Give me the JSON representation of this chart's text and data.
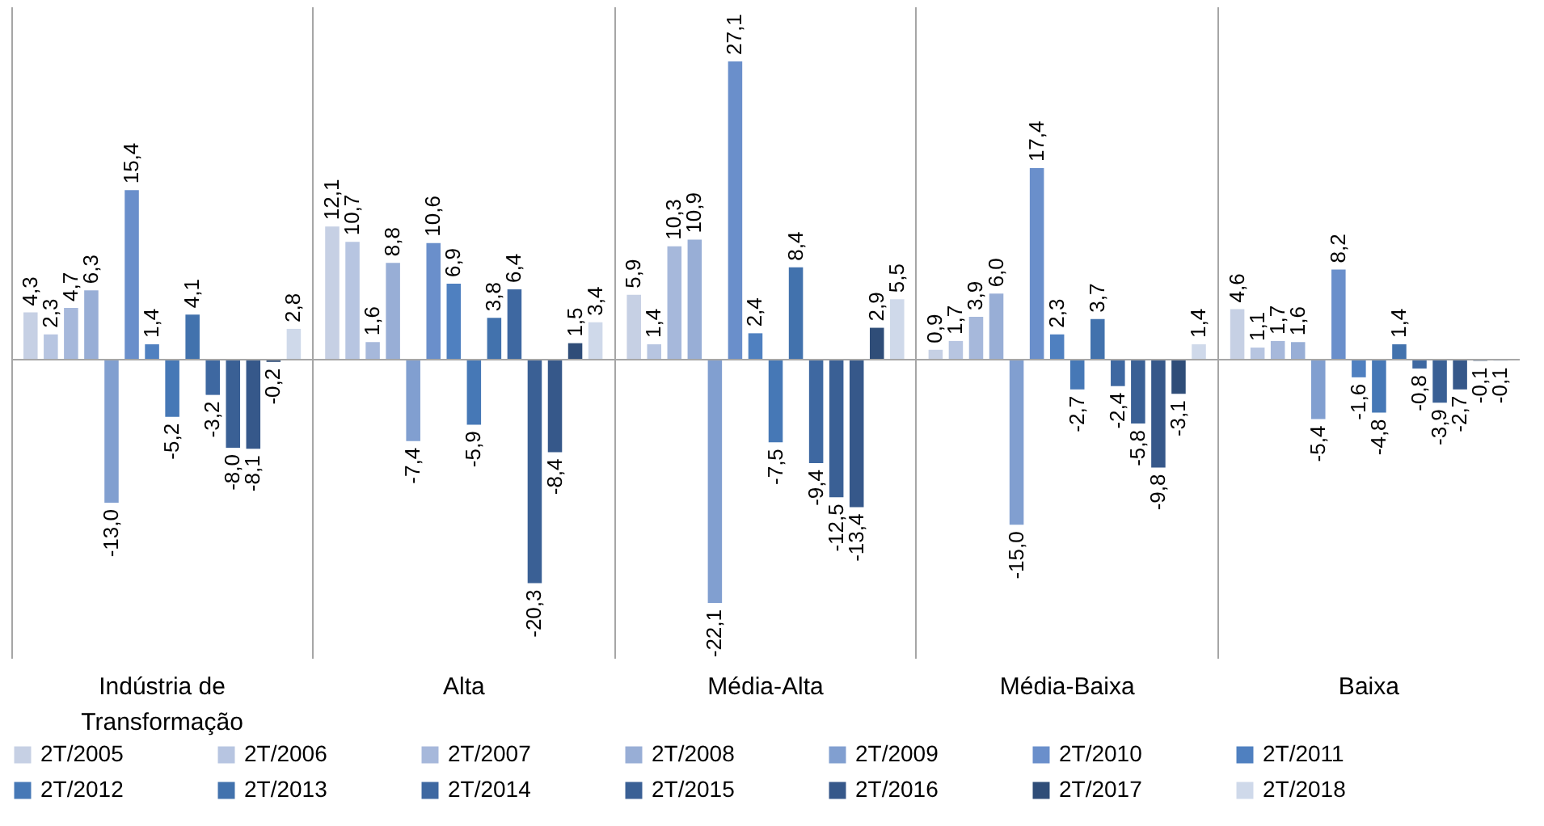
{
  "chart_data": {
    "type": "bar",
    "categories": [
      "Indústria de Transformação",
      "Alta",
      "Média-Alta",
      "Média-Baixa",
      "Baixa"
    ],
    "series": [
      {
        "name": "2T/2005",
        "color": "#c6d0e4",
        "values": [
          4.3,
          12.1,
          5.9,
          0.9,
          4.6
        ],
        "value_labels": [
          "4,3",
          "12,1",
          "5,9",
          "0,9",
          "4,6"
        ]
      },
      {
        "name": "2T/2006",
        "color": "#b7c5e1",
        "values": [
          2.3,
          10.7,
          1.4,
          1.7,
          1.1
        ],
        "value_labels": [
          "2,3",
          "10,7",
          "1,4",
          "1,7",
          "1,1"
        ]
      },
      {
        "name": "2T/2007",
        "color": "#a6b8db",
        "values": [
          4.7,
          1.6,
          10.3,
          3.9,
          1.7
        ],
        "value_labels": [
          "4,7",
          "1,6",
          "10,3",
          "3,9",
          "1,7"
        ]
      },
      {
        "name": "2T/2008",
        "color": "#98aed6",
        "values": [
          6.3,
          8.8,
          10.9,
          6.0,
          1.6
        ],
        "value_labels": [
          "6,3",
          "8,8",
          "10,9",
          "6,0",
          "1,6"
        ]
      },
      {
        "name": "2T/2009",
        "color": "#819fd0",
        "values": [
          -13.0,
          -7.4,
          -22.1,
          -15.0,
          -5.4
        ],
        "value_labels": [
          "-13,0",
          "-7,4",
          "-22,1",
          "-15,0",
          "-5,4"
        ]
      },
      {
        "name": "2T/2010",
        "color": "#6a8fcb",
        "values": [
          15.4,
          10.6,
          27.1,
          17.4,
          8.2
        ],
        "value_labels": [
          "15,4",
          "10,6",
          "27,1",
          "17,4",
          "8,2"
        ]
      },
      {
        "name": "2T/2011",
        "color": "#4f80c0",
        "values": [
          1.4,
          6.9,
          2.4,
          2.3,
          -1.6
        ],
        "value_labels": [
          "1,4",
          "6,9",
          "2,4",
          "2,3",
          "-1,6"
        ]
      },
      {
        "name": "2T/2012",
        "color": "#4678b6",
        "values": [
          -5.2,
          -5.9,
          -7.5,
          -2.7,
          -4.8
        ],
        "value_labels": [
          "-5,2",
          "-5,9",
          "-7,5",
          "-2,7",
          "-4,8"
        ]
      },
      {
        "name": "2T/2013",
        "color": "#4272ad",
        "values": [
          4.1,
          3.8,
          8.4,
          3.7,
          1.4
        ],
        "value_labels": [
          "4,1",
          "3,8",
          "8,4",
          "3,7",
          "1,4"
        ]
      },
      {
        "name": "2T/2014",
        "color": "#3e68a1",
        "values": [
          -3.2,
          6.4,
          -9.4,
          -2.4,
          -0.8
        ],
        "value_labels": [
          "-3,2",
          "6,4",
          "-9,4",
          "-2,4",
          "-0,8"
        ]
      },
      {
        "name": "2T/2015",
        "color": "#3a6095",
        "values": [
          -8.0,
          -20.3,
          -12.5,
          -5.8,
          -3.9
        ],
        "value_labels": [
          "-8,0",
          "-20,3",
          "-12,5",
          "-5,8",
          "-3,9"
        ]
      },
      {
        "name": "2T/2016",
        "color": "#36588a",
        "values": [
          -8.1,
          -8.4,
          -13.4,
          -9.8,
          -2.7
        ],
        "value_labels": [
          "-8,1",
          "-8,4",
          "-13,4",
          "-9,8",
          "-2,7"
        ]
      },
      {
        "name": "2T/2017",
        "color": "#2f4d78",
        "values": [
          -0.2,
          1.5,
          2.9,
          -3.1,
          -0.1
        ],
        "value_labels": [
          "-0,2",
          "1,5",
          "2,9",
          "-3,1",
          "-0,1"
        ]
      },
      {
        "name": "2T/2018",
        "color": "#cfd9ea",
        "values": [
          2.8,
          3.4,
          5.5,
          1.4,
          -0.1
        ],
        "value_labels": [
          "2,8",
          "3,4",
          "5,5",
          "1,4",
          "-0,1"
        ]
      }
    ],
    "ref_lines": [
      {
        "axis": "y",
        "value": 0,
        "color": "#a6a6a6"
      }
    ],
    "grid": "x",
    "legend": "bottom"
  }
}
